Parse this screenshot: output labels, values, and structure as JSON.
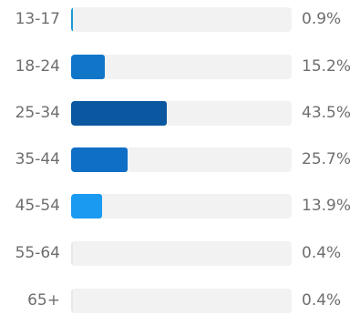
{
  "chart_data": {
    "type": "bar",
    "orientation": "horizontal",
    "categories": [
      "13-17",
      "18-24",
      "25-34",
      "35-44",
      "45-54",
      "55-64",
      "65+"
    ],
    "values": [
      0.9,
      15.2,
      43.5,
      25.7,
      13.9,
      0.4,
      0.4
    ],
    "value_labels": [
      "0.9%",
      "15.2%",
      "43.5%",
      "25.7%",
      "13.9%",
      "0.4%",
      "0.4%"
    ],
    "xlim": [
      0,
      100
    ],
    "grid": false,
    "bar_colors": [
      "#1a9ad6",
      "#1276c8",
      "#0b57a0",
      "#0f6ec6",
      "#1a9af0",
      "#e8e8e8",
      "#e8e8e8"
    ],
    "track_color": "#f2f2f2",
    "text_color": "#6e6e6e"
  }
}
